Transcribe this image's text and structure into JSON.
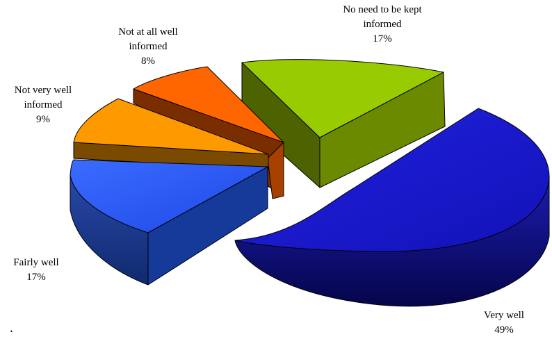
{
  "chart_data": {
    "type": "pie",
    "title": "",
    "slices": [
      {
        "label": "Very well",
        "value": 49,
        "display": "49%",
        "color": "#1a1ad8"
      },
      {
        "label": "Fairly well",
        "value": 17,
        "display": "17%",
        "color": "#2f5fff"
      },
      {
        "label": "Not very well informed",
        "value": 9,
        "display": "9%",
        "color": "#ff9900"
      },
      {
        "label": "Not at all well informed",
        "value": 8,
        "display": "8%",
        "color": "#ff6600"
      },
      {
        "label": "No need to be kept informed",
        "value": 17,
        "display": "17%",
        "color": "#99cc00"
      }
    ]
  },
  "labels": {
    "very_well": {
      "line1": "Very well",
      "pct": "49%"
    },
    "fairly_well": {
      "line1": "Fairly well",
      "pct": "17%"
    },
    "not_very_well": {
      "line1": "Not very well",
      "line2": "informed",
      "pct": "9%"
    },
    "not_at_all": {
      "line1": "Not at all well",
      "line2": "informed",
      "pct": "8%"
    },
    "no_need": {
      "line1": "No need to be kept",
      "line2": "informed",
      "pct": "17%"
    }
  },
  "stray_mark": "."
}
